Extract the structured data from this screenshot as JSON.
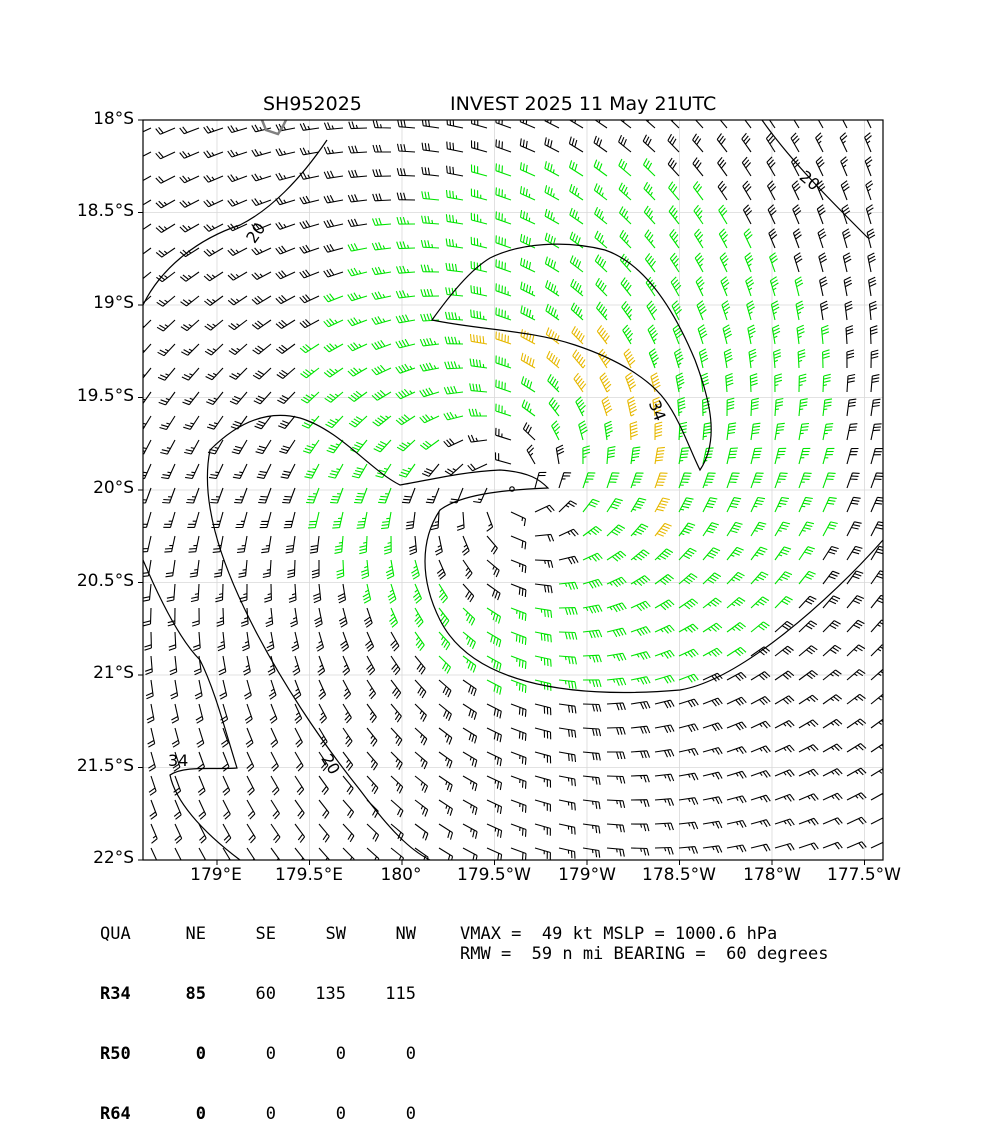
{
  "title": {
    "storm_id": "SH952025",
    "storm_info": "INVEST 2025 11 May 21UTC"
  },
  "map": {
    "lat_labels": [
      "18°S",
      "18.5°S",
      "19°S",
      "19.5°S",
      "20°S",
      "20.5°S",
      "21°S",
      "21.5°S",
      "22°S"
    ],
    "lon_labels": [
      "179°E",
      "179.5°E",
      "180°",
      "179.5°W",
      "179°W",
      "178.5°W",
      "178°W",
      "177.5°W"
    ],
    "contour_labels": [
      "20",
      "20",
      "34",
      "34",
      "20"
    ],
    "colors": {
      "below_34kt": "#000000",
      "34_to_50kt": "#00e400",
      "above_50kt": "#e6b800",
      "coastline": "#808080"
    },
    "center": {
      "lon": -179.4,
      "lat": -20.0
    }
  },
  "radii_table": {
    "header": [
      "QUA",
      "NE",
      "SE",
      "SW",
      "NW"
    ],
    "rows": [
      {
        "label": "R34",
        "values": [
          "85",
          "60",
          "135",
          "115"
        ]
      },
      {
        "label": "R50",
        "values": [
          "0",
          "0",
          "0",
          "0"
        ]
      },
      {
        "label": "R64",
        "values": [
          "0",
          "0",
          "0",
          "0"
        ]
      }
    ]
  },
  "summary": {
    "line1": "VMAX =  49 kt MSLP = 1000.6 hPa",
    "line2": "RMW =  59 n mi BEARING =  60 degrees"
  }
}
